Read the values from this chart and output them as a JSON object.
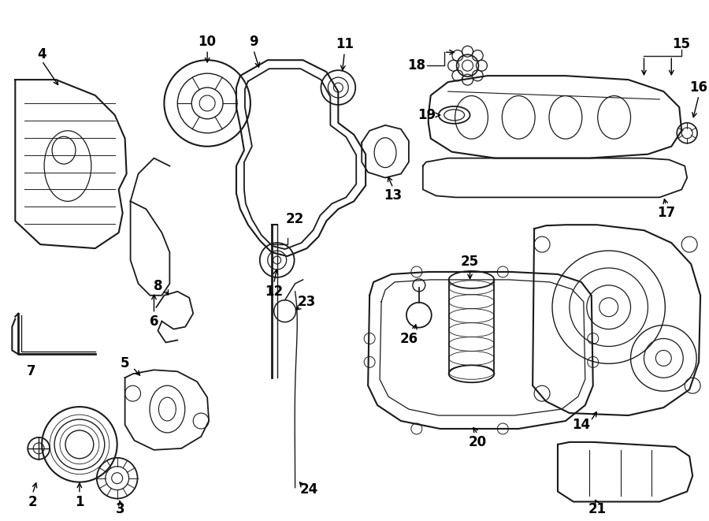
{
  "background_color": "#ffffff",
  "line_color": "#1a1a1a",
  "fig_width": 9.0,
  "fig_height": 6.61,
  "dpi": 100,
  "border_color": "#000000"
}
